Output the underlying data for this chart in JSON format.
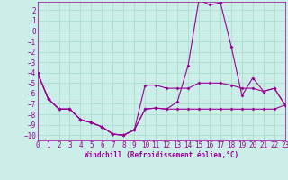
{
  "xlabel": "Windchill (Refroidissement éolien,°C)",
  "bg_color": "#cceee8",
  "grid_color": "#aaddcc",
  "line_color": "#990099",
  "xlim": [
    0,
    23
  ],
  "ylim": [
    -10.5,
    2.8
  ],
  "xticks": [
    0,
    1,
    2,
    3,
    4,
    5,
    6,
    7,
    8,
    9,
    10,
    11,
    12,
    13,
    14,
    15,
    16,
    17,
    18,
    19,
    20,
    21,
    22,
    23
  ],
  "yticks": [
    2,
    1,
    0,
    -1,
    -2,
    -3,
    -4,
    -5,
    -6,
    -7,
    -8,
    -9,
    -10
  ],
  "series1_x": [
    0,
    1,
    2,
    3,
    4,
    5,
    6,
    7,
    8,
    9,
    10,
    11,
    12,
    13,
    14,
    15,
    16,
    17,
    18,
    19,
    20,
    21,
    22,
    23
  ],
  "series1_y": [
    -4.0,
    -6.5,
    -7.5,
    -7.5,
    -8.5,
    -8.8,
    -9.2,
    -9.9,
    -10.0,
    -9.5,
    -7.5,
    -7.4,
    -7.5,
    -6.8,
    -3.3,
    3.0,
    2.5,
    2.7,
    -1.5,
    -6.2,
    -4.5,
    -5.8,
    -5.5,
    -7.1
  ],
  "series2_x": [
    0,
    1,
    2,
    3,
    4,
    5,
    6,
    7,
    8,
    9,
    10,
    11,
    12,
    13,
    14,
    15,
    16,
    17,
    18,
    19,
    20,
    21,
    22,
    23
  ],
  "series2_y": [
    -4.0,
    -6.5,
    -7.5,
    -7.5,
    -8.5,
    -8.8,
    -9.2,
    -9.9,
    -10.0,
    -9.5,
    -5.2,
    -5.2,
    -5.5,
    -5.5,
    -5.5,
    -5.0,
    -5.0,
    -5.0,
    -5.2,
    -5.5,
    -5.5,
    -5.8,
    -5.5,
    -7.1
  ],
  "series3_x": [
    0,
    1,
    2,
    3,
    4,
    5,
    6,
    7,
    8,
    9,
    10,
    11,
    12,
    13,
    14,
    15,
    16,
    17,
    18,
    19,
    20,
    21,
    22,
    23
  ],
  "series3_y": [
    -4.0,
    -6.5,
    -7.5,
    -7.5,
    -8.5,
    -8.8,
    -9.2,
    -9.9,
    -10.0,
    -9.5,
    -7.5,
    -7.4,
    -7.5,
    -7.5,
    -7.5,
    -7.5,
    -7.5,
    -7.5,
    -7.5,
    -7.5,
    -7.5,
    -7.5,
    -7.5,
    -7.1
  ],
  "tick_fontsize": 5.5,
  "xlabel_fontsize": 5.5,
  "marker_size": 2.0,
  "line_width": 0.8
}
